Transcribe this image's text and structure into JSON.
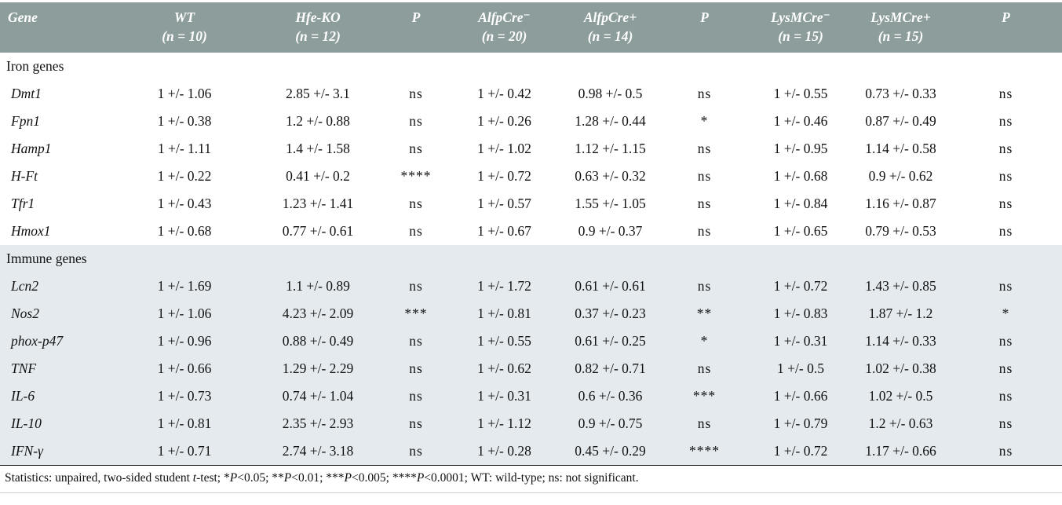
{
  "colors": {
    "header_bg": "#8c9d9c",
    "immune_section_bg": "#e4eaee",
    "iron_section_bg": "#ffffff",
    "header_text": "#ffffff",
    "body_text": "#111111"
  },
  "header": {
    "columns": [
      {
        "label": "Gene",
        "sub": ""
      },
      {
        "label": "WT",
        "sub": "(n = 10)"
      },
      {
        "label": "Hfe-KO",
        "sub": "(n = 12)"
      },
      {
        "label": "P",
        "sub": ""
      },
      {
        "label": "AlfpCre⁻",
        "sub": "(n = 20)"
      },
      {
        "label": "AlfpCre+",
        "sub": "(n = 14)"
      },
      {
        "label": "P",
        "sub": ""
      },
      {
        "label": "LysMCre⁻",
        "sub": "(n = 15)"
      },
      {
        "label": "LysMCre+",
        "sub": "(n = 15)"
      },
      {
        "label": "P",
        "sub": ""
      }
    ]
  },
  "sections": [
    {
      "title": "Iron genes",
      "rows": [
        {
          "gene": "Dmt1",
          "values": [
            "1 +/- 1.06",
            "2.85 +/- 3.1",
            "ns",
            "1 +/- 0.42",
            "0.98 +/- 0.5",
            "ns",
            "1 +/- 0.55",
            "0.73 +/- 0.33",
            "ns"
          ]
        },
        {
          "gene": "Fpn1",
          "values": [
            "1 +/- 0.38",
            "1.2 +/- 0.88",
            "ns",
            "1 +/- 0.26",
            "1.28 +/- 0.44",
            "*",
            "1 +/- 0.46",
            "0.87 +/- 0.49",
            "ns"
          ]
        },
        {
          "gene": "Hamp1",
          "values": [
            "1 +/- 1.11",
            "1.4 +/- 1.58",
            "ns",
            "1 +/- 1.02",
            "1.12 +/- 1.15",
            "ns",
            "1 +/- 0.95",
            "1.14 +/- 0.58",
            "ns"
          ]
        },
        {
          "gene": "H-Ft",
          "values": [
            "1 +/- 0.22",
            "0.41 +/- 0.2",
            "****",
            "1 +/- 0.72",
            "0.63 +/- 0.32",
            "ns",
            "1 +/- 0.68",
            "0.9 +/- 0.62",
            "ns"
          ]
        },
        {
          "gene": "Tfr1",
          "values": [
            "1 +/- 0.43",
            "1.23 +/- 1.41",
            "ns",
            "1 +/- 0.57",
            "1.55 +/- 1.05",
            "ns",
            "1 +/- 0.84",
            "1.16 +/- 0.87",
            "ns"
          ]
        },
        {
          "gene": "Hmox1",
          "values": [
            "1 +/- 0.68",
            "0.77 +/- 0.61",
            "ns",
            "1 +/- 0.67",
            "0.9 +/- 0.37",
            "ns",
            "1 +/- 0.65",
            "0.79 +/- 0.53",
            "ns"
          ]
        }
      ]
    },
    {
      "title": "Immune genes",
      "rows": [
        {
          "gene": "Lcn2",
          "values": [
            "1 +/- 1.69",
            "1.1 +/- 0.89",
            "ns",
            "1 +/- 1.72",
            "0.61 +/- 0.61",
            "ns",
            "1 +/- 0.72",
            "1.43 +/- 0.85",
            "ns"
          ]
        },
        {
          "gene": "Nos2",
          "values": [
            "1 +/- 1.06",
            "4.23 +/- 2.09",
            "***",
            "1 +/- 0.81",
            "0.37 +/- 0.23",
            "**",
            "1 +/- 0.83",
            "1.87 +/- 1.2",
            "*"
          ]
        },
        {
          "gene": "phox-p47",
          "values": [
            "1 +/- 0.96",
            "0.88 +/- 0.49",
            "ns",
            "1 +/- 0.55",
            "0.61 +/- 0.25",
            "*",
            "1 +/- 0.31",
            "1.14 +/- 0.33",
            "ns"
          ]
        },
        {
          "gene": "TNF",
          "values": [
            "1 +/- 0.66",
            "1.29 +/- 2.29",
            "ns",
            "1 +/- 0.62",
            "0.82 +/- 0.71",
            "ns",
            "1 +/- 0.5",
            "1.02 +/- 0.38",
            "ns"
          ]
        },
        {
          "gene": "IL-6",
          "values": [
            "1 +/- 0.73",
            "0.74 +/- 1.04",
            "ns",
            "1 +/- 0.31",
            "0.6 +/- 0.36",
            "***",
            "1 +/- 0.66",
            "1.02 +/- 0.5",
            "ns"
          ]
        },
        {
          "gene": "IL-10",
          "values": [
            "1 +/- 0.81",
            "2.35 +/- 2.93",
            "ns",
            "1 +/- 1.12",
            "0.9 +/- 0.75",
            "ns",
            "1 +/- 0.79",
            "1.2 +/- 0.63",
            "ns"
          ]
        },
        {
          "gene": "IFN-γ",
          "values": [
            "1 +/- 0.71",
            "2.74 +/- 3.18",
            "ns",
            "1 +/- 0.28",
            "0.45 +/- 0.29",
            "****",
            "1 +/- 0.72",
            "1.17 +/- 0.66",
            "ns"
          ]
        }
      ]
    }
  ],
  "footnote": {
    "segments": [
      {
        "text": "Statistics: unpaired, two-sided student ",
        "italic": false
      },
      {
        "text": "t",
        "italic": true
      },
      {
        "text": "-test; *",
        "italic": false
      },
      {
        "text": "P",
        "italic": true
      },
      {
        "text": "<0.05; **",
        "italic": false
      },
      {
        "text": "P",
        "italic": true
      },
      {
        "text": "<0.01; ***",
        "italic": false
      },
      {
        "text": "P",
        "italic": true
      },
      {
        "text": "<0.005; ****",
        "italic": false
      },
      {
        "text": "P",
        "italic": true
      },
      {
        "text": "<0.0001; WT: wild-type; ns: not significant.",
        "italic": false
      }
    ]
  }
}
